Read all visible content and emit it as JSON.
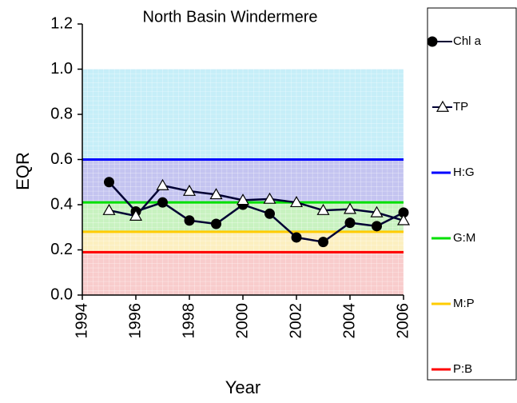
{
  "chart_data": {
    "type": "line",
    "title": "North Basin Windermere",
    "x_label": "Year",
    "y_label": "EQR",
    "x": [
      1995,
      1996,
      1997,
      1998,
      1999,
      2000,
      2001,
      2002,
      2003,
      2004,
      2005,
      2006
    ],
    "series": [
      {
        "name": "Chl a",
        "color": "#000033",
        "marker": "circle",
        "values": [
          0.5,
          0.37,
          0.41,
          0.33,
          0.315,
          0.4,
          0.36,
          0.255,
          0.235,
          0.32,
          0.305,
          0.365
        ]
      },
      {
        "name": "TP",
        "color": "#000033",
        "marker": "triangle",
        "values": [
          0.375,
          0.35,
          0.485,
          0.46,
          0.445,
          0.42,
          0.425,
          0.41,
          0.375,
          0.38,
          0.365,
          0.33
        ]
      }
    ],
    "thresholds": [
      {
        "name": "H:G",
        "color": "#0000ff",
        "value": 0.6,
        "band_color": "#c6eef8"
      },
      {
        "name": "G:M",
        "color": "#00e000",
        "value": 0.41,
        "band_color": "#c4c4f0"
      },
      {
        "name": "M:P",
        "color": "#ffcc00",
        "value": 0.28,
        "band_color": "#c8f2c0"
      },
      {
        "name": "P:B",
        "color": "#ff0000",
        "value": 0.19,
        "band_color": "#fcefc0"
      }
    ],
    "bottom_band_color": "#f8cccc",
    "band_top": 1.0,
    "xlim": [
      1994,
      2006
    ],
    "xticks": [
      1994,
      1996,
      1998,
      2000,
      2002,
      2004,
      2006
    ],
    "ylim": [
      0,
      1.2
    ],
    "yticks": [
      {
        "value": 0,
        "label": "0.0"
      },
      0.2,
      0.4,
      0.6,
      0.8,
      {
        "value": 1,
        "label": "1.0"
      },
      1.2
    ],
    "legend": "right"
  }
}
